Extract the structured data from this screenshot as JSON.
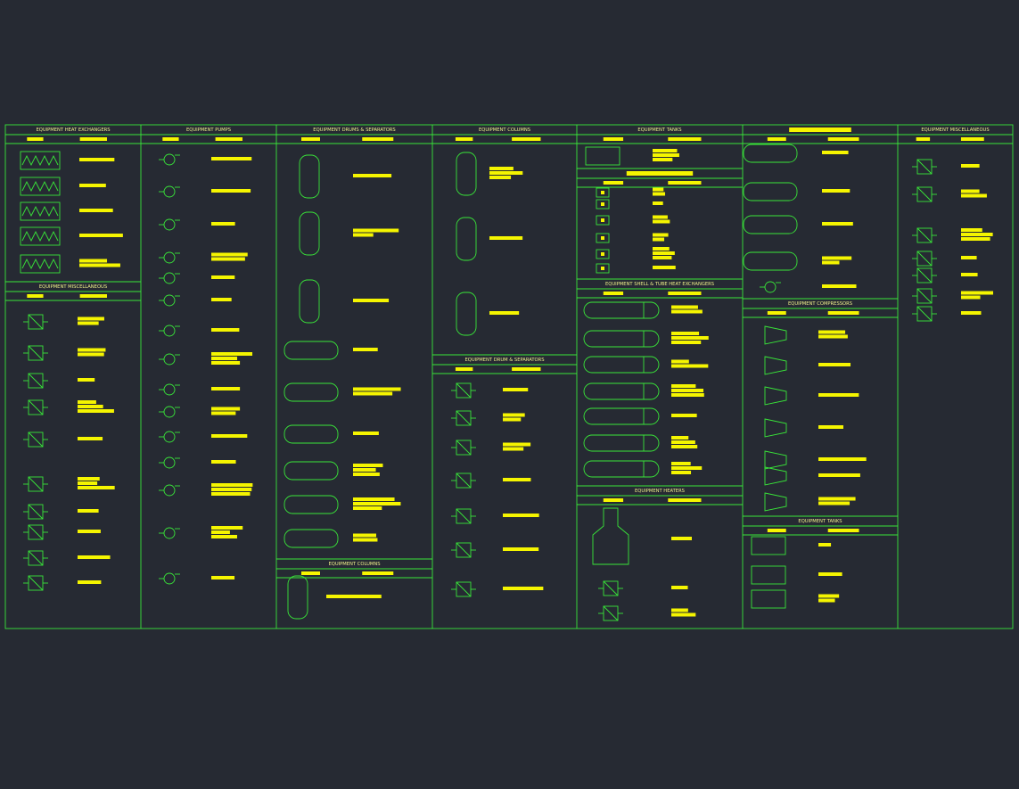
{
  "sections": [
    {
      "title": "EQUIPMENT HEAT EXCHANGERS"
    },
    {
      "title": "EQUIPMENT MISCELLANEOUS"
    },
    {
      "title": "EQUIPMENT PUMPS"
    },
    {
      "title": "EQUIPMENT DRUMS & SEPARATORS"
    },
    {
      "title": "EQUIPMENT COLUMNS"
    },
    {
      "title": "EQUIPMENT COLUMNS"
    },
    {
      "title": "EQUIPMENT DRUM & SEPARATORS"
    },
    {
      "title": "EQUIPMENT TANKS"
    },
    {
      "title": "EQUIPMENT SHELL & TUBE HEAT EXCHANGERS"
    },
    {
      "title": "EQUIPMENT HEATERS"
    },
    {
      "title": "EQUIPMENT COMPRESSORS"
    },
    {
      "title": "EQUIPMENT TANKS"
    },
    {
      "title": "EQUIPMENT MISCELLANEOUS"
    }
  ]
}
